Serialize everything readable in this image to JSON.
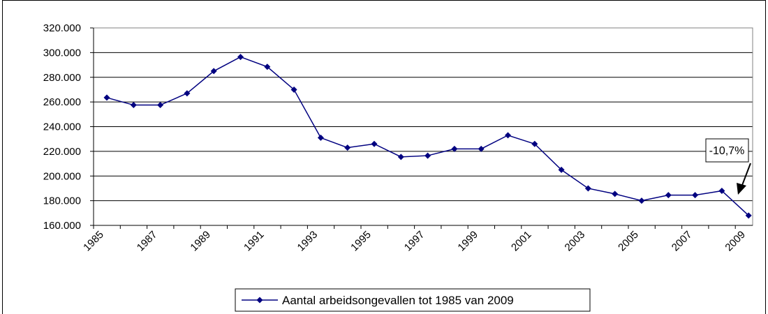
{
  "chart_data": {
    "type": "line",
    "categories": [
      "1985",
      null,
      "1987",
      null,
      "1989",
      null,
      "1991",
      null,
      "1993",
      null,
      "1995",
      null,
      "1997",
      null,
      "1999",
      null,
      "2001",
      null,
      "2003",
      null,
      "2005",
      null,
      "2007",
      null,
      "2009"
    ],
    "series": [
      {
        "name": "Aantal arbeidsongevallen tot 1985 van 2009",
        "color": "#000080",
        "values": [
          263500,
          257500,
          257500,
          267000,
          285000,
          296500,
          288500,
          270000,
          231000,
          223000,
          226000,
          215500,
          216500,
          222000,
          222000,
          233000,
          226000,
          205000,
          190000,
          185500,
          180000,
          184500,
          184500,
          188000,
          168000
        ]
      }
    ],
    "ylim": [
      160000,
      320000
    ],
    "yticks": [
      {
        "value": 160000,
        "label": "160.000"
      },
      {
        "value": 180000,
        "label": "180.000"
      },
      {
        "value": 200000,
        "label": "200.000"
      },
      {
        "value": 220000,
        "label": "220.000"
      },
      {
        "value": 240000,
        "label": "240.000"
      },
      {
        "value": 260000,
        "label": "260.000"
      },
      {
        "value": 280000,
        "label": "280.000"
      },
      {
        "value": 300000,
        "label": "300.000"
      },
      {
        "value": 320000,
        "label": "320.000"
      }
    ],
    "grid": true,
    "legend": "bottom",
    "annotation": "-10,7%"
  }
}
